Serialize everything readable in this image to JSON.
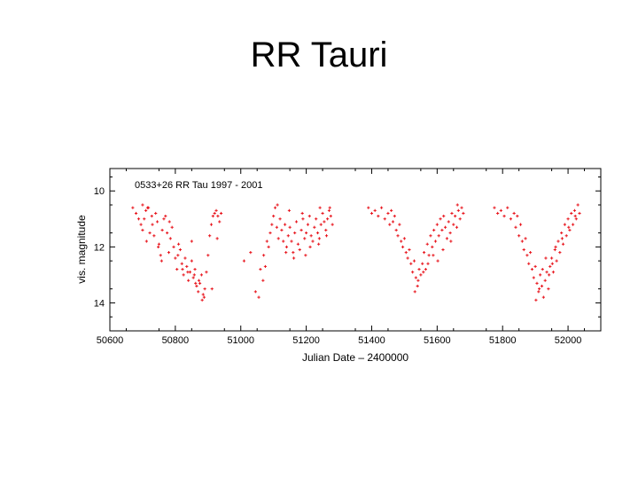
{
  "slide": {
    "title": "RR Tauri"
  },
  "chart_data": {
    "type": "scatter",
    "annotation": "0533+26  RR Tau  1997 - 2001",
    "xlabel": "Julian Date – 2400000",
    "ylabel": "vis. magnitude",
    "xlim": [
      50600,
      52100
    ],
    "ylim": [
      9.2,
      15.0
    ],
    "y_inverted": true,
    "x_ticks": [
      50600,
      50800,
      51000,
      51200,
      51400,
      51600,
      51800,
      52000
    ],
    "y_ticks": [
      10,
      12,
      14
    ],
    "grid": false,
    "marker": "plus",
    "color": "#e8141c",
    "series": [
      {
        "x": [
          50670,
          50680,
          50688,
          50695,
          50700,
          50705,
          50710,
          50712,
          50718,
          50722,
          50728,
          50730,
          50735,
          50740,
          50745,
          50750,
          50755,
          50760,
          50765,
          50770,
          50775,
          50780,
          50785,
          50790,
          50795,
          50800,
          50805,
          50810,
          50815,
          50820,
          50825,
          50830,
          50835,
          50840,
          50845,
          50850,
          50855,
          50860,
          50865,
          50870,
          50875,
          50880,
          50885,
          50890,
          50895,
          50900,
          50905,
          50910,
          50915,
          50920,
          50925,
          50930,
          50935,
          50940,
          50715,
          50748,
          50782,
          50808,
          50838,
          50858,
          50872,
          50888,
          50912,
          50928,
          50700,
          50758,
          50822,
          50850,
          50862,
          50882,
          51010,
          51030,
          51045,
          51055,
          51060,
          51070,
          51080,
          51085,
          51090,
          51095,
          51100,
          51105,
          51110,
          51115,
          51120,
          51125,
          51130,
          51135,
          51140,
          51145,
          51150,
          51155,
          51160,
          51165,
          51170,
          51175,
          51180,
          51185,
          51190,
          51195,
          51200,
          51205,
          51210,
          51215,
          51220,
          51225,
          51230,
          51235,
          51240,
          51245,
          51250,
          51255,
          51260,
          51265,
          51270,
          51275,
          51280,
          51068,
          51075,
          51112,
          51138,
          51162,
          51188,
          51212,
          51238,
          51262,
          51272,
          51198,
          51148,
          51242,
          51390,
          51400,
          51410,
          51420,
          51430,
          51440,
          51450,
          51455,
          51460,
          51465,
          51470,
          51475,
          51480,
          51485,
          51490,
          51495,
          51500,
          51505,
          51510,
          51515,
          51520,
          51525,
          51530,
          51535,
          51540,
          51545,
          51550,
          51555,
          51560,
          51565,
          51570,
          51575,
          51580,
          51585,
          51590,
          51595,
          51600,
          51605,
          51610,
          51615,
          51620,
          51625,
          51630,
          51635,
          51640,
          51645,
          51650,
          51655,
          51660,
          51665,
          51670,
          51675,
          51680,
          51532,
          51542,
          51558,
          51572,
          51588,
          51602,
          51618,
          51642,
          51662,
          51775,
          51785,
          51795,
          51805,
          51815,
          51825,
          51835,
          51840,
          51845,
          51850,
          51855,
          51860,
          51865,
          51870,
          51875,
          51880,
          51885,
          51890,
          51895,
          51900,
          51905,
          51910,
          51915,
          51920,
          51925,
          51930,
          51935,
          51940,
          51945,
          51950,
          51955,
          51960,
          51965,
          51970,
          51975,
          51980,
          51985,
          51990,
          51995,
          52000,
          52005,
          52010,
          52015,
          52020,
          52025,
          52030,
          52035,
          51902,
          51912,
          51922,
          51932,
          51942,
          51952,
          51962,
          51982,
          52002,
          52022
        ],
        "y": [
          10.6,
          10.8,
          11.0,
          11.2,
          11.4,
          11.0,
          10.7,
          11.8,
          10.6,
          11.5,
          10.9,
          11.2,
          11.6,
          10.8,
          11.1,
          11.9,
          12.3,
          11.4,
          11.0,
          10.9,
          11.5,
          12.2,
          11.7,
          11.3,
          12.0,
          12.4,
          12.8,
          11.9,
          12.1,
          12.6,
          13.0,
          12.4,
          12.7,
          13.2,
          12.9,
          12.5,
          13.1,
          12.8,
          13.4,
          13.6,
          13.3,
          13.0,
          13.7,
          13.5,
          12.9,
          12.3,
          11.6,
          11.2,
          10.9,
          10.8,
          10.7,
          10.9,
          11.1,
          10.8,
          10.6,
          12.0,
          11.1,
          12.3,
          12.9,
          13.0,
          13.2,
          13.8,
          13.5,
          11.7,
          10.5,
          12.5,
          12.8,
          11.8,
          13.3,
          13.9,
          12.5,
          12.2,
          13.6,
          13.8,
          12.8,
          12.3,
          11.8,
          12.0,
          11.5,
          11.2,
          10.9,
          10.6,
          11.3,
          11.7,
          11.0,
          11.4,
          11.8,
          11.2,
          12.0,
          11.6,
          11.3,
          11.8,
          12.2,
          11.5,
          11.1,
          11.9,
          12.1,
          11.4,
          11.0,
          11.7,
          11.5,
          11.2,
          10.9,
          11.6,
          11.8,
          11.3,
          11.0,
          11.5,
          11.7,
          11.2,
          10.8,
          11.1,
          11.4,
          11.0,
          10.7,
          10.9,
          11.2,
          13.2,
          12.7,
          10.5,
          12.2,
          12.4,
          10.8,
          12.0,
          11.9,
          11.6,
          10.6,
          12.3,
          10.7,
          10.6,
          10.6,
          10.8,
          10.7,
          10.9,
          10.6,
          11.0,
          10.8,
          11.2,
          10.7,
          11.1,
          10.9,
          11.4,
          11.6,
          11.2,
          11.8,
          12.0,
          11.7,
          12.2,
          12.4,
          12.1,
          12.6,
          12.9,
          12.5,
          13.1,
          13.4,
          12.8,
          13.0,
          12.6,
          12.2,
          12.8,
          11.9,
          12.3,
          11.6,
          12.0,
          11.4,
          11.8,
          11.2,
          11.6,
          11.0,
          11.4,
          10.9,
          11.3,
          11.7,
          11.1,
          11.5,
          10.8,
          11.2,
          10.9,
          11.3,
          10.7,
          11.0,
          10.6,
          10.8,
          13.6,
          13.2,
          12.9,
          12.6,
          12.3,
          12.5,
          12.1,
          11.8,
          10.5,
          10.6,
          10.8,
          10.7,
          10.9,
          10.6,
          11.0,
          10.8,
          11.3,
          10.9,
          11.6,
          11.2,
          11.8,
          12.1,
          11.7,
          12.3,
          12.6,
          12.2,
          12.8,
          13.1,
          12.7,
          13.3,
          13.6,
          13.0,
          13.4,
          13.8,
          13.2,
          12.9,
          13.5,
          12.7,
          12.4,
          12.9,
          12.1,
          12.5,
          11.8,
          12.2,
          11.5,
          11.9,
          11.2,
          11.6,
          11.0,
          11.4,
          10.8,
          11.2,
          10.7,
          11.0,
          10.5,
          10.8,
          13.9,
          13.5,
          12.8,
          12.4,
          13.0,
          12.6,
          12.0,
          11.7,
          11.3,
          10.9
        ]
      }
    ]
  }
}
